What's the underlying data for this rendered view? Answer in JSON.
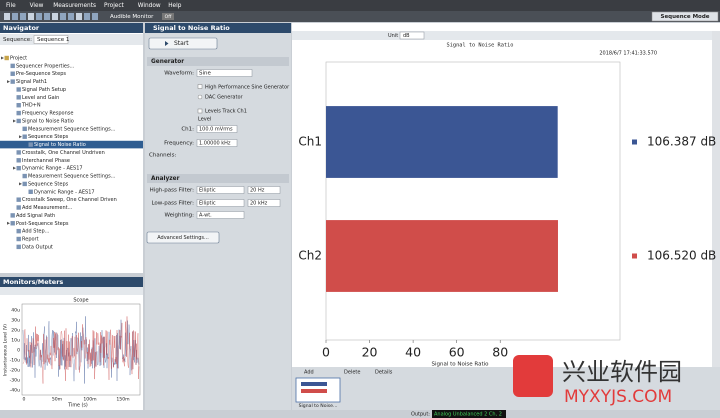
{
  "menu": [
    "File",
    "View",
    "Measurements",
    "Project",
    "Window",
    "Help"
  ],
  "mode": "Sequence Mode",
  "toolbar": {
    "audible_monitor": "Audible Monitor",
    "state": "Off"
  },
  "navigator": {
    "title": "Navigator",
    "sequence_label": "Sequence:",
    "sequence": "Sequence 1",
    "tree": [
      {
        "label": "Project",
        "children": [
          {
            "label": "Sequencer Properties..."
          },
          {
            "label": "Pre-Sequence Steps"
          },
          {
            "label": "Signal Path1",
            "children": [
              {
                "label": "Signal Path Setup"
              },
              {
                "label": "Level and Gain"
              },
              {
                "label": "THD+N"
              },
              {
                "label": "Frequency Response"
              },
              {
                "label": "Signal to Noise Ratio",
                "children": [
                  {
                    "label": "Measurement Sequence Settings..."
                  },
                  {
                    "label": "Sequence Steps",
                    "children": [
                      {
                        "label": "Signal to Noise Ratio",
                        "selected": true
                      }
                    ]
                  }
                ]
              },
              {
                "label": "Crosstalk, One Channel Undriven"
              },
              {
                "label": "Interchannel Phase"
              },
              {
                "label": "Dynamic Range - AES17",
                "children": [
                  {
                    "label": "Measurement Sequence Settings..."
                  },
                  {
                    "label": "Sequence Steps",
                    "children": [
                      {
                        "label": "Dynamic Range - AES17"
                      }
                    ]
                  }
                ]
              },
              {
                "label": "Crosstalk Sweep, One Channel Driven"
              },
              {
                "label": "Add Measurement..."
              }
            ]
          },
          {
            "label": "Add Signal Path"
          },
          {
            "label": "Post-Sequence Steps",
            "children": [
              {
                "label": "Add Step..."
              },
              {
                "label": "Report"
              },
              {
                "label": "Data Output"
              }
            ]
          }
        ]
      }
    ]
  },
  "monitors": {
    "title": "Monitors/Meters",
    "scope": {
      "title": "Scope",
      "y_label": "Instantaneous Level (V)",
      "x_label": "Time (s)",
      "yticks": [
        "40u",
        "30u",
        "20u",
        "10u",
        "0",
        "-10u",
        "-20u",
        "-30u",
        "-40u"
      ],
      "xticks": [
        "0",
        "50m",
        "100m",
        "150m"
      ]
    }
  },
  "settings": {
    "title": "Signal to Noise Ratio",
    "start": "Start",
    "generator": {
      "title": "Generator",
      "waveform_label": "Waveform:",
      "waveform": "Sine",
      "hp_sine": "High Performance Sine Generator",
      "dac": "DAC Generator",
      "track": "Levels Track Ch1",
      "level": "Level",
      "ch1_label": "Ch1:",
      "ch1": "100.0 mVrms",
      "freq_label": "Frequency:",
      "freq": "1.00000 kHz",
      "channels": "Channels:"
    },
    "analyzer": {
      "title": "Analyzer",
      "hp_label": "High-pass Filter:",
      "hp_type": "Elliptic",
      "hp_freq": "20 Hz",
      "lp_label": "Low-pass Filter:",
      "lp_type": "Elliptic",
      "lp_freq": "20 kHz",
      "weight_label": "Weighting:",
      "weight": "A-wt.",
      "advanced": "Advanced Settings..."
    }
  },
  "result": {
    "unit_label": "Unit",
    "unit": "dB"
  },
  "chart_data": {
    "type": "bar",
    "orientation": "horizontal",
    "title": "Signal to Noise Ratio",
    "timestamp": "2018/6/7 17:41:33.570",
    "categories": [
      "Ch1",
      "Ch2"
    ],
    "values": [
      106.387,
      106.52
    ],
    "value_labels": [
      "106.387 dB",
      "106.520 dB"
    ],
    "colors": [
      "#3b5694",
      "#d04d4a"
    ],
    "xlabel": "Signal to Noise Ratio",
    "xlim": [
      0,
      135
    ],
    "xticks": [
      0,
      20,
      40,
      60,
      80
    ]
  },
  "thumbs": {
    "add": "Add",
    "delete": "Delete",
    "details": "Details",
    "thumbnail": "Signal to Noise..."
  },
  "status": {
    "label": "Output:",
    "value": "Analog Unbalanced 2 Ch, 2"
  },
  "watermark": {
    "name": "兴业软件园",
    "url": "MYXYJS.COM"
  }
}
